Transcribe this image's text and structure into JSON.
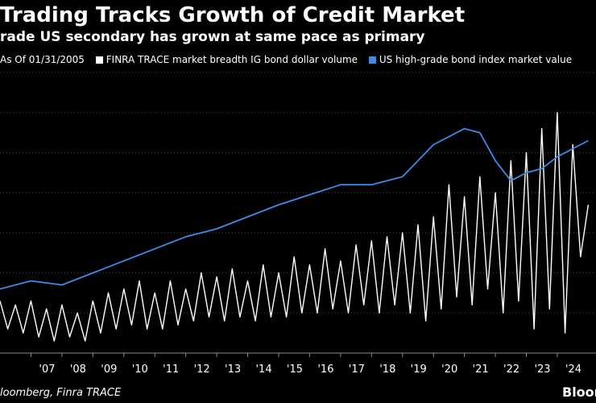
{
  "header": {
    "title": "Trading Tracks Growth of Credit Market",
    "subtitle": "rade US secondary has grown at same pace as primary"
  },
  "legend": {
    "prefix": "As Of 01/31/2005",
    "items": [
      {
        "label": "FINRA TRACE market breadth IG bond dollar volume",
        "color": "#ffffff"
      },
      {
        "label": "US high-grade bond index market value",
        "color": "#3d8be8"
      }
    ]
  },
  "footer": {
    "source": "loomberg, Finra TRACE",
    "brand": "Bloomberg"
  },
  "colors": {
    "background": "#000000",
    "volume_series": "#ffffff",
    "index_series": "#3d8be8",
    "gridline": "#444444"
  },
  "chart_data": {
    "type": "line",
    "title": "Trading Tracks Growth of Credit Market",
    "xlabel": "",
    "ylabel": "",
    "xlim": [
      2006.0,
      2025.25
    ],
    "ylim": [
      0,
      7
    ],
    "grid": true,
    "x_tick_labels": [
      "'07",
      "'08",
      "'09",
      "'10",
      "'11",
      "'12",
      "'13",
      "'14",
      "'15",
      "'16",
      "'17",
      "'18",
      "'19",
      "'20",
      "'21",
      "'22",
      "'23",
      "'24"
    ],
    "x_tick_values": [
      2007,
      2008,
      2009,
      2010,
      2011,
      2012,
      2013,
      2014,
      2015,
      2016,
      2017,
      2018,
      2019,
      2020,
      2021,
      2022,
      2023,
      2024
    ],
    "series": [
      {
        "name": "FINRA TRACE market breadth IG bond dollar volume",
        "color": "#ffffff",
        "x": [
          2006.0,
          2006.25,
          2006.5,
          2006.75,
          2007.0,
          2007.25,
          2007.5,
          2007.75,
          2008.0,
          2008.25,
          2008.5,
          2008.75,
          2009.0,
          2009.25,
          2009.5,
          2009.75,
          2010.0,
          2010.25,
          2010.5,
          2010.75,
          2011.0,
          2011.25,
          2011.5,
          2011.75,
          2012.0,
          2012.25,
          2012.5,
          2012.75,
          2013.0,
          2013.25,
          2013.5,
          2013.75,
          2014.0,
          2014.25,
          2014.5,
          2014.75,
          2015.0,
          2015.25,
          2015.5,
          2015.75,
          2016.0,
          2016.25,
          2016.5,
          2016.75,
          2017.0,
          2017.25,
          2017.5,
          2017.75,
          2018.0,
          2018.25,
          2018.5,
          2018.75,
          2019.0,
          2019.25,
          2019.5,
          2019.75,
          2020.0,
          2020.25,
          2020.5,
          2020.75,
          2021.0,
          2021.25,
          2021.5,
          2021.75,
          2022.0,
          2022.25,
          2022.5,
          2022.75,
          2023.0,
          2023.25,
          2023.5,
          2023.75,
          2024.0,
          2024.25,
          2024.5,
          2024.75,
          2025.0
        ],
        "values": [
          1.3,
          0.6,
          1.2,
          0.5,
          1.3,
          0.4,
          1.1,
          0.3,
          1.2,
          0.4,
          1.0,
          0.3,
          1.3,
          0.5,
          1.5,
          0.6,
          1.6,
          0.7,
          1.8,
          0.6,
          1.5,
          0.6,
          1.8,
          0.7,
          1.6,
          0.8,
          2.0,
          0.9,
          1.9,
          0.8,
          2.1,
          0.9,
          1.8,
          0.8,
          2.2,
          0.9,
          2.0,
          0.9,
          2.4,
          1.0,
          2.2,
          1.0,
          2.6,
          1.1,
          2.3,
          1.0,
          2.7,
          1.2,
          2.8,
          1.0,
          2.9,
          1.2,
          3.0,
          1.0,
          3.2,
          0.8,
          3.4,
          1.1,
          4.2,
          1.4,
          3.9,
          1.2,
          4.4,
          1.6,
          4.0,
          1.0,
          4.8,
          1.3,
          5.0,
          0.6,
          5.6,
          1.1,
          6.0,
          0.5,
          5.2,
          2.4,
          3.7
        ]
      },
      {
        "name": "US high-grade bond index market value",
        "color": "#3d8be8",
        "x": [
          2006.0,
          2007.0,
          2008.0,
          2009.0,
          2010.0,
          2011.0,
          2012.0,
          2013.0,
          2014.0,
          2015.0,
          2016.0,
          2017.0,
          2018.0,
          2019.0,
          2020.0,
          2021.0,
          2021.5,
          2022.0,
          2022.5,
          2023.0,
          2023.5,
          2024.0,
          2024.5,
          2025.0
        ],
        "values": [
          1.6,
          1.8,
          1.7,
          2.0,
          2.3,
          2.6,
          2.9,
          3.1,
          3.4,
          3.7,
          3.95,
          4.2,
          4.2,
          4.4,
          5.2,
          5.6,
          5.5,
          4.8,
          4.3,
          4.5,
          4.6,
          4.9,
          5.1,
          5.3
        ]
      }
    ]
  }
}
